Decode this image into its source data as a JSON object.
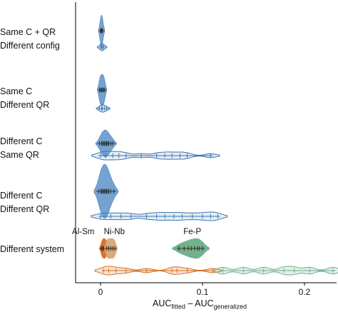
{
  "chart_data": {
    "type": "violin",
    "xlabel": "AUC_fitted – AUC_generalized",
    "xlabel_parts": {
      "main": "AUC",
      "sub1": "fitted",
      "dash": " – AUC",
      "sub2": "generalized"
    },
    "xlim": [
      -0.025,
      0.235
    ],
    "xticks": [
      0,
      0.1,
      0.2
    ],
    "xtick_labels": [
      "0",
      "0.1",
      "0.2"
    ],
    "grid": false,
    "categories": [
      {
        "label_lines": [
          "Same C + QR",
          "Different config"
        ]
      },
      {
        "label_lines": [
          "Same C",
          "Different QR"
        ]
      },
      {
        "label_lines": [
          "Different C",
          "Same QR"
        ]
      },
      {
        "label_lines": [
          "Different C",
          "Different QR"
        ]
      },
      {
        "label_lines": [
          "Different system"
        ]
      }
    ],
    "series_colors": {
      "blue": "#6d9dcf",
      "blue_edge": "#3d74ad",
      "dark": "#333333",
      "orange": "#d96d1f",
      "tan": "#d7a878",
      "green": "#6aae8a"
    },
    "annotations": [
      "Al-Sm",
      "Ni-Nb",
      "Fe-P"
    ],
    "violins": [
      {
        "row": 0,
        "kind": "upper",
        "color": "blue",
        "points": [
          0.0,
          0.0005,
          0.001,
          0.0015,
          0.002
        ]
      },
      {
        "row": 0,
        "kind": "lower",
        "color": "blue",
        "points": [
          0.0,
          0.001,
          0.002,
          0.003
        ]
      },
      {
        "row": 1,
        "kind": "upper",
        "color": "blue",
        "points": [
          -0.001,
          0.0,
          0.001,
          0.002,
          0.003,
          0.004
        ]
      },
      {
        "row": 1,
        "kind": "lower",
        "color": "blue",
        "points": [
          -0.001,
          0.001,
          0.002,
          0.004,
          0.006
        ]
      },
      {
        "row": 2,
        "kind": "upper",
        "color": "blue",
        "points": [
          -0.001,
          0.001,
          0.002,
          0.003,
          0.004,
          0.005,
          0.006,
          0.007,
          0.008,
          0.01,
          0.012
        ]
      },
      {
        "row": 2,
        "kind": "lower",
        "color": "blue",
        "points": [
          0.0,
          0.005,
          0.012,
          0.018,
          0.025,
          0.04,
          0.055,
          0.063,
          0.07,
          0.078,
          0.085,
          0.108
        ]
      },
      {
        "row": 3,
        "kind": "upper",
        "color": "blue",
        "points": [
          -0.002,
          0.0,
          0.001,
          0.002,
          0.003,
          0.004,
          0.005,
          0.006,
          0.007,
          0.008,
          0.01,
          0.013
        ]
      },
      {
        "row": 3,
        "kind": "lower",
        "color": "blue",
        "points": [
          0.0,
          0.01,
          0.02,
          0.03,
          0.045,
          0.055,
          0.063,
          0.072,
          0.08,
          0.09,
          0.1,
          0.108,
          0.115
        ]
      },
      {
        "row": 4,
        "kind": "upper",
        "color": "orange",
        "system": "Al-Sm",
        "points": [
          0.001,
          0.002,
          0.003,
          0.004,
          0.005,
          0.006
        ]
      },
      {
        "row": 4,
        "kind": "upper",
        "color": "tan",
        "system": "Ni-Nb",
        "points": [
          0.006,
          0.008,
          0.01,
          0.012,
          0.014
        ]
      },
      {
        "row": 4,
        "kind": "upper",
        "color": "green",
        "system": "Fe-P",
        "points": [
          0.077,
          0.082,
          0.086,
          0.089,
          0.092,
          0.095,
          0.097,
          0.1
        ]
      },
      {
        "row": 4,
        "kind": "lower",
        "color": "orange",
        "system": "Al-Sm",
        "points": [
          0.003,
          0.008,
          0.015,
          0.025,
          0.045,
          0.07,
          0.075,
          0.085,
          0.11
        ]
      },
      {
        "row": 4,
        "kind": "lower",
        "color": "green",
        "system": "Fe-P",
        "points": [
          0.12,
          0.14,
          0.16,
          0.18,
          0.19,
          0.205,
          0.228
        ]
      }
    ]
  }
}
